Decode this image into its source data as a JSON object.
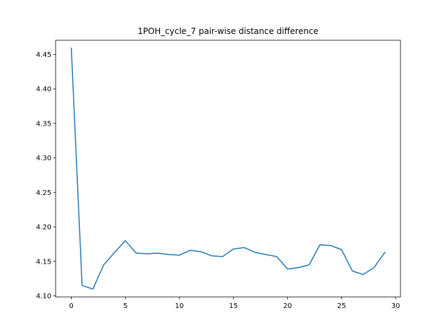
{
  "chart_data": {
    "type": "line",
    "title": "1POH_cycle_7 pair-wise distance difference",
    "xlabel": "",
    "ylabel": "",
    "xlim": [
      -1.45,
      30.45
    ],
    "ylim": [
      4.0985,
      4.4705
    ],
    "x_ticks": [
      0,
      5,
      10,
      15,
      20,
      25,
      30
    ],
    "y_ticks": [
      4.1,
      4.15,
      4.2,
      4.25,
      4.3,
      4.35,
      4.4,
      4.45
    ],
    "x_tick_labels": [
      "0",
      "5",
      "10",
      "15",
      "20",
      "25",
      "30"
    ],
    "y_tick_labels": [
      "4.10",
      "4.15",
      "4.20",
      "4.25",
      "4.30",
      "4.35",
      "4.40",
      "4.45"
    ],
    "grid": false,
    "series": [
      {
        "color": "#1f77b4",
        "x": [
          0,
          1,
          2,
          3,
          4,
          5,
          6,
          7,
          8,
          9,
          10,
          11,
          12,
          13,
          14,
          15,
          16,
          17,
          18,
          19,
          20,
          21,
          22,
          23,
          24,
          25,
          26,
          27,
          28,
          29
        ],
        "values": [
          4.459,
          4.115,
          4.11,
          4.145,
          4.163,
          4.18,
          4.162,
          4.161,
          4.162,
          4.16,
          4.159,
          4.166,
          4.164,
          4.158,
          4.157,
          4.168,
          4.17,
          4.163,
          4.16,
          4.157,
          4.139,
          4.141,
          4.145,
          4.174,
          4.173,
          4.167,
          4.136,
          4.131,
          4.141,
          4.163
        ]
      }
    ]
  }
}
